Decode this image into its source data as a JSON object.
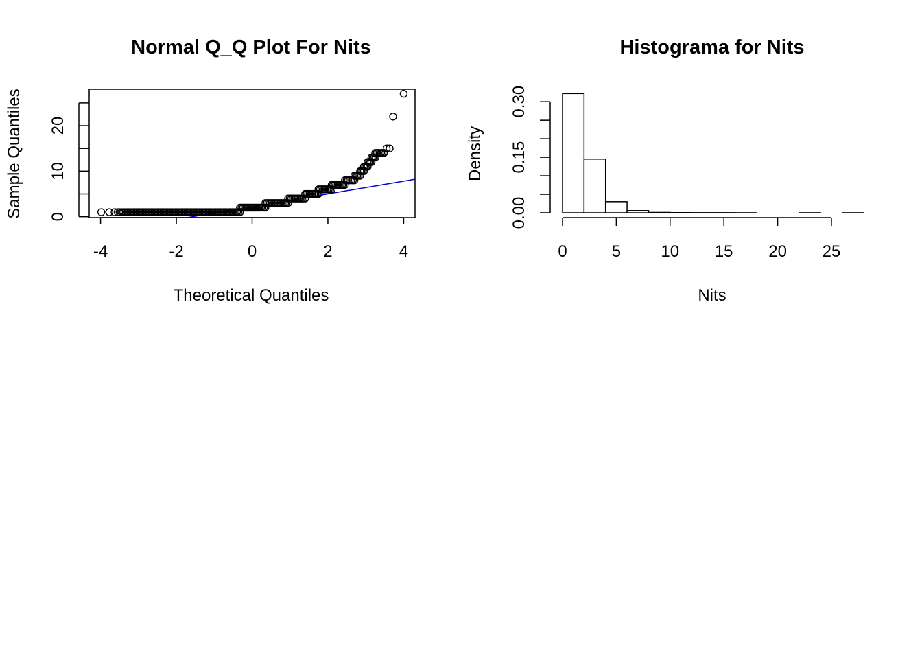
{
  "chart_data": [
    {
      "type": "scatter",
      "title": "Normal Q_Q Plot For Nits",
      "xlabel": "Theoretical Quantiles",
      "ylabel": "Sample Quantiles",
      "xlim": [
        -4.3,
        4.3
      ],
      "ylim": [
        -0.2,
        28
      ],
      "xticks": [
        -4,
        -2,
        0,
        2,
        4
      ],
      "yticks": [
        0,
        10,
        20
      ],
      "box": true,
      "reference_line": {
        "color": "#0000cc",
        "intercept": 2.2,
        "slope": 1.4
      },
      "series": [
        {
          "points": [
            [
              -3.98,
              1
            ],
            [
              -3.77,
              1
            ],
            [
              -3.63,
              1
            ],
            [
              -3.55,
              1
            ],
            [
              -3.5,
              1
            ],
            [
              3.63,
              15
            ],
            [
              3.55,
              15
            ],
            [
              3.72,
              22
            ],
            [
              4.0,
              27
            ]
          ],
          "steps": [
            {
              "y": 1,
              "x0": -3.45,
              "x1": -0.32
            },
            {
              "y": 2,
              "x0": -0.32,
              "x1": 0.35
            },
            {
              "y": 3,
              "x0": 0.35,
              "x1": 0.95
            },
            {
              "y": 4,
              "x0": 0.95,
              "x1": 1.4
            },
            {
              "y": 5,
              "x0": 1.4,
              "x1": 1.75
            },
            {
              "y": 6,
              "x0": 1.75,
              "x1": 2.1
            },
            {
              "y": 7,
              "x0": 2.1,
              "x1": 2.45
            },
            {
              "y": 8,
              "x0": 2.45,
              "x1": 2.7
            },
            {
              "y": 9,
              "x0": 2.7,
              "x1": 2.85
            },
            {
              "y": 10,
              "x0": 2.85,
              "x1": 2.95
            },
            {
              "y": 11,
              "x0": 2.95,
              "x1": 3.05
            },
            {
              "y": 12,
              "x0": 3.05,
              "x1": 3.15
            },
            {
              "y": 13,
              "x0": 3.15,
              "x1": 3.25
            },
            {
              "y": 14,
              "x0": 3.25,
              "x1": 3.48
            }
          ]
        }
      ]
    },
    {
      "type": "bar",
      "title": "Histograma for  Nits",
      "xlabel": "Nits",
      "ylabel": "Density",
      "xlim": [
        0,
        28
      ],
      "ylim": [
        0,
        0.33
      ],
      "xticks": [
        0,
        5,
        10,
        15,
        20,
        25
      ],
      "yticks": [
        "0.00",
        "0.15",
        "0.30"
      ],
      "yticks_minor": [
        0.05,
        0.1,
        0.2,
        0.25
      ],
      "bin_edges": [
        0,
        2,
        4,
        6,
        8,
        10,
        12,
        14,
        16,
        18,
        20,
        22,
        24,
        26,
        28
      ],
      "values": [
        0.322,
        0.145,
        0.03,
        0.006,
        0.001,
        0.0005,
        0.0003,
        0.0003,
        0.0001,
        0.0,
        0.0,
        0.0001,
        0.0,
        0.0001
      ]
    }
  ]
}
